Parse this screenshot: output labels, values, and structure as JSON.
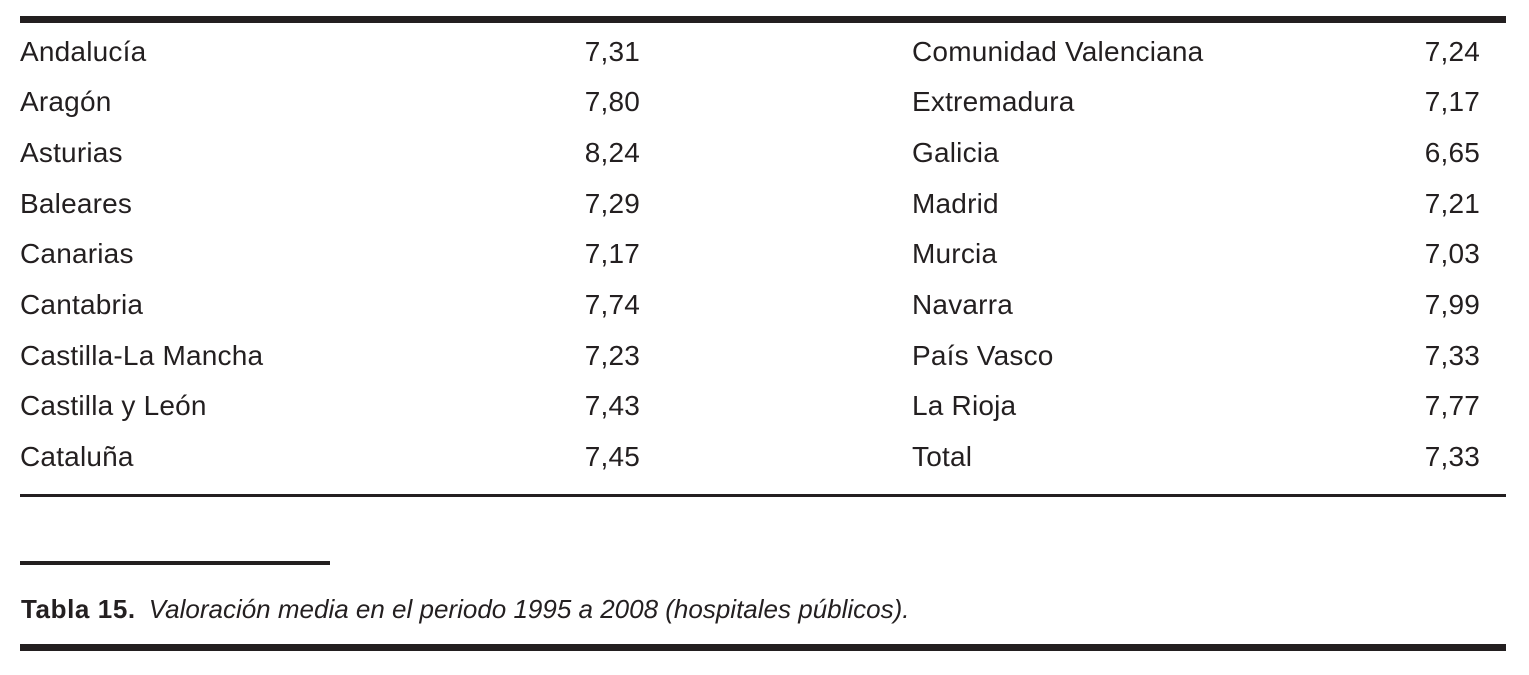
{
  "colors": {
    "ink": "#231f20",
    "background": "#ffffff"
  },
  "table": {
    "rows": [
      {
        "left": {
          "region": "Andalucía",
          "value": "7,31"
        },
        "right": {
          "region": "Comunidad Valenciana",
          "value": "7,24"
        }
      },
      {
        "left": {
          "region": "Aragón",
          "value": "7,80"
        },
        "right": {
          "region": "Extremadura",
          "value": "7,17"
        }
      },
      {
        "left": {
          "region": "Asturias",
          "value": "8,24"
        },
        "right": {
          "region": "Galicia",
          "value": "6,65"
        }
      },
      {
        "left": {
          "region": "Baleares",
          "value": "7,29"
        },
        "right": {
          "region": "Madrid",
          "value": "7,21"
        }
      },
      {
        "left": {
          "region": "Canarias",
          "value": "7,17"
        },
        "right": {
          "region": "Murcia",
          "value": "7,03"
        }
      },
      {
        "left": {
          "region": "Cantabria",
          "value": "7,74"
        },
        "right": {
          "region": "Navarra",
          "value": "7,99"
        }
      },
      {
        "left": {
          "region": "Castilla-La Mancha",
          "value": "7,23"
        },
        "right": {
          "region": "País Vasco",
          "value": "7,33"
        }
      },
      {
        "left": {
          "region": "Castilla y León",
          "value": "7,43"
        },
        "right": {
          "region": "La Rioja",
          "value": "7,77"
        }
      },
      {
        "left": {
          "region": "Cataluña",
          "value": "7,45"
        },
        "right": {
          "region": "Total",
          "value": "7,33"
        }
      }
    ]
  },
  "caption": {
    "label": "Tabla 15.",
    "text": "Valoración media en el periodo 1995 a 2008 (hospitales públicos)."
  }
}
